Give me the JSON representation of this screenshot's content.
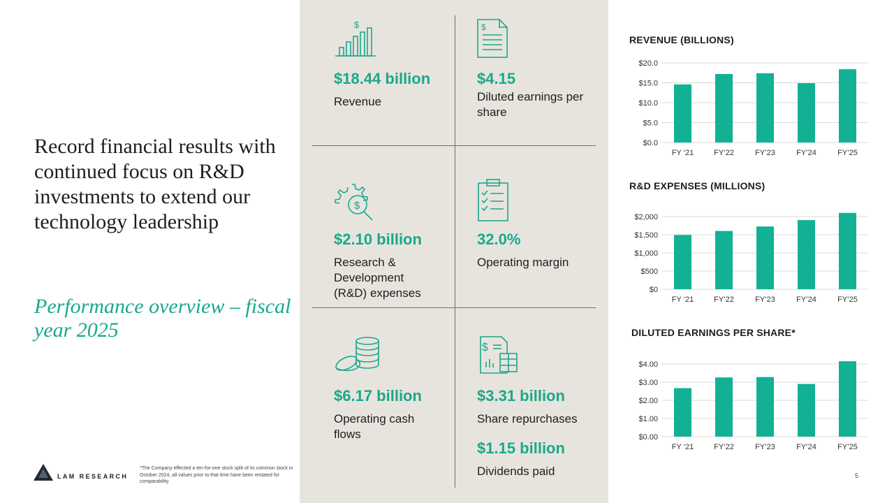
{
  "headline": "Record financial results with continued focus on R&D investments to extend our technology leadership",
  "subheadline": "Performance overview – fiscal year 2025",
  "brand": {
    "name": "LAM RESEARCH"
  },
  "footnote": "*The Company effected a ten-for-one stock split of its common stock in October 2024, all values prior to that time have been restated for comparability.",
  "page_number": "5",
  "colors": {
    "accent": "#1aa88c",
    "panel": "#e7e4de",
    "bar": "#12b194"
  },
  "kpis": [
    {
      "icon": "bar-chart-dollar-icon",
      "value": "$18.44 billion",
      "label": "Revenue"
    },
    {
      "icon": "document-dollar-icon",
      "value": "$4.15",
      "label": "Diluted earnings per share"
    },
    {
      "icon": "gear-dollar-search-icon",
      "value": "$2.10 billion",
      "label": "Research & Development (R&D) expenses"
    },
    {
      "icon": "clipboard-checklist-icon",
      "value": "32.0%",
      "label": "Operating margin"
    },
    {
      "icon": "coins-stack-icon",
      "value": "$6.17 billion",
      "label": "Operating cash flows"
    },
    {
      "icon": "calculator-document-icon",
      "value": "$3.31 billion",
      "label": "Share repurchases"
    },
    {
      "icon": "",
      "value": "$1.15 billion",
      "label": "Dividends paid"
    }
  ],
  "chart_data": [
    {
      "type": "bar",
      "title": "REVENUE (BILLIONS)",
      "categories": [
        "FY ‘21",
        "FY’22",
        "FY’23",
        "FY’24",
        "FY’25"
      ],
      "values": [
        14.6,
        17.2,
        17.4,
        14.9,
        18.4
      ],
      "ylim": [
        0,
        20
      ],
      "yticks": [
        0,
        5,
        10,
        15,
        20
      ],
      "ytick_labels": [
        "$0.0",
        "$5.0",
        "$10.0",
        "$15.0",
        "$20.0"
      ],
      "xlabel": "",
      "ylabel": "",
      "grid": true
    },
    {
      "type": "bar",
      "title": "R&D EXPENSES (MILLIONS)",
      "categories": [
        "FY ‘21",
        "FY’22",
        "FY’23",
        "FY’24",
        "FY’25"
      ],
      "values": [
        1493,
        1604,
        1727,
        1903,
        2102
      ],
      "ylim": [
        0,
        2000
      ],
      "yticks": [
        0,
        500,
        1000,
        1500,
        2000
      ],
      "ytick_labels": [
        "$0",
        "$500",
        "$1,000",
        "$1,500",
        "$2,000"
      ],
      "xlabel": "",
      "ylabel": "",
      "grid": true
    },
    {
      "type": "bar",
      "title": "DILUTED EARNINGS PER SHARE*",
      "categories": [
        "FY ‘21",
        "FY’22",
        "FY’23",
        "FY’24",
        "FY’25"
      ],
      "values": [
        2.67,
        3.26,
        3.28,
        2.9,
        4.15
      ],
      "ylim": [
        0,
        4
      ],
      "yticks": [
        0,
        1,
        2,
        3,
        4
      ],
      "ytick_labels": [
        "$0.00",
        "$1.00",
        "$2.00",
        "$3.00",
        "$4.00"
      ],
      "xlabel": "",
      "ylabel": "",
      "grid": true
    }
  ]
}
